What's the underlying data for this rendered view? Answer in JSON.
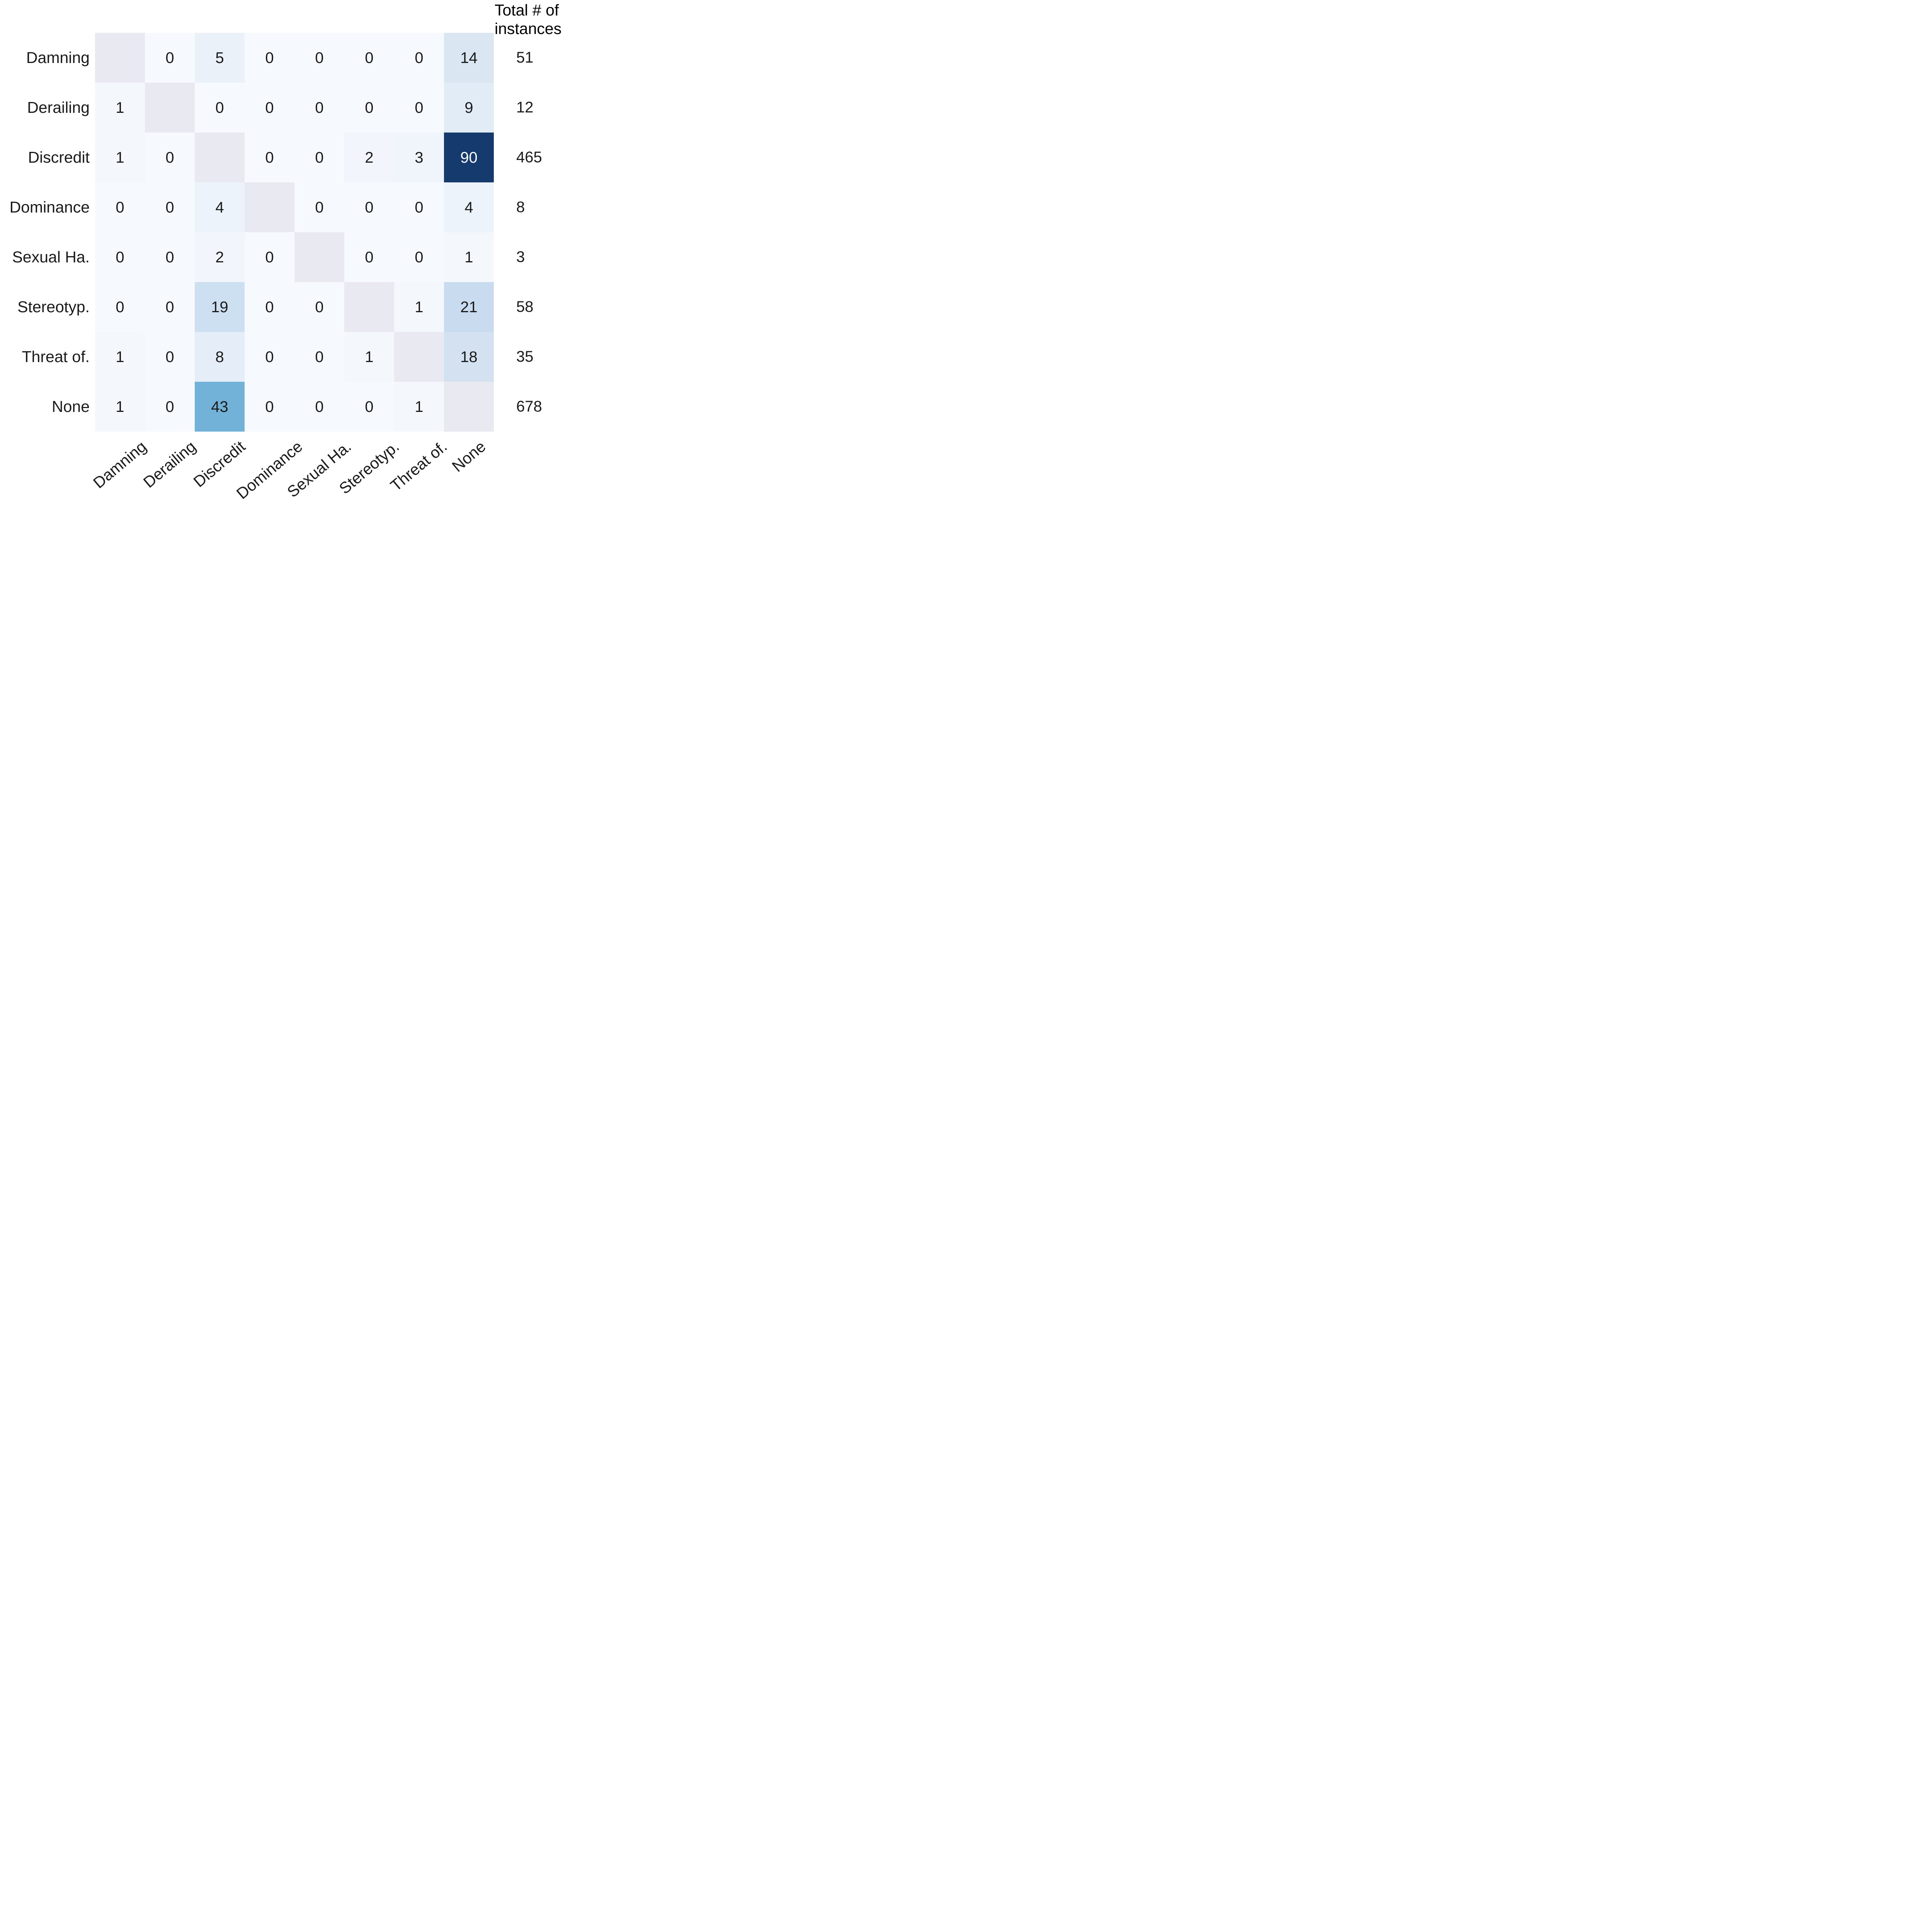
{
  "chart_data": {
    "type": "heatmap",
    "description": "Confusion matrix heatmap with masked diagonal and per-row totals",
    "axis_categories": [
      "Damning",
      "Derailing",
      "Discredit",
      "Dominance",
      "Sexual Ha.",
      "Stereotyp.",
      "Threat of.",
      "None"
    ],
    "rows": [
      {
        "label": "Damning",
        "values": [
          null,
          0,
          5,
          0,
          0,
          0,
          0,
          14
        ],
        "total": 51
      },
      {
        "label": "Derailing",
        "values": [
          1,
          null,
          0,
          0,
          0,
          0,
          0,
          9
        ],
        "total": 12
      },
      {
        "label": "Discredit",
        "values": [
          1,
          0,
          null,
          0,
          0,
          2,
          3,
          90
        ],
        "total": 465
      },
      {
        "label": "Dominance",
        "values": [
          0,
          0,
          4,
          null,
          0,
          0,
          0,
          4
        ],
        "total": 8
      },
      {
        "label": "Sexual Ha.",
        "values": [
          0,
          0,
          2,
          0,
          null,
          0,
          0,
          1
        ],
        "total": 3
      },
      {
        "label": "Stereotyp.",
        "values": [
          0,
          0,
          19,
          0,
          0,
          null,
          1,
          21
        ],
        "total": 58
      },
      {
        "label": "Threat of.",
        "values": [
          1,
          0,
          8,
          0,
          0,
          1,
          null,
          18
        ],
        "total": 35
      },
      {
        "label": "None",
        "values": [
          1,
          0,
          43,
          0,
          0,
          0,
          1,
          null
        ],
        "total": 678
      }
    ],
    "totals_header_lines": [
      "Total # of",
      "instances"
    ],
    "masked_diagonal": true,
    "colormap": "Blues",
    "white_text_min_value": 60,
    "colors": {
      "value_colors": {
        "0": "#f6fafe",
        "1": "#f4f8fd",
        "2": "#f2f6fc",
        "3": "#eff5fb",
        "4": "#edf3fa",
        "5": "#eaf1f9",
        "8": "#e5eef8",
        "9": "#e2ecf7",
        "14": "#dae6f2",
        "18": "#d3e1f1",
        "19": "#cde0f1",
        "21": "#c9dcef",
        "43": "#72b2d9",
        "90": "#143a6e"
      },
      "diagonal_mask": "#e9e9f1",
      "cell_text": "#1a1a1a",
      "cell_text_on_dark": "#ffffff",
      "background": "#ffffff"
    }
  }
}
